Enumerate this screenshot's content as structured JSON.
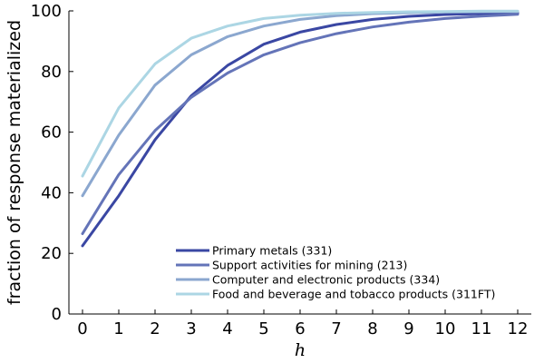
{
  "chart_data": {
    "type": "line",
    "title": "",
    "xlabel": "h",
    "ylabel": "fraction of response materialized",
    "x": [
      0,
      1,
      2,
      3,
      4,
      5,
      6,
      7,
      8,
      9,
      10,
      11,
      12
    ],
    "xlim": [
      0,
      12
    ],
    "ylim": [
      0,
      100
    ],
    "xticks": [
      "0",
      "1",
      "2",
      "3",
      "4",
      "5",
      "6",
      "7",
      "8",
      "9",
      "10",
      "11",
      "12"
    ],
    "yticks": [
      "0",
      "20",
      "40",
      "60",
      "80",
      "100"
    ],
    "grid": false,
    "legend_position": "bottom-right",
    "series": [
      {
        "name": "Primary metals (331)",
        "color": "#3a47a3",
        "values": [
          22.5,
          39,
          57.5,
          72,
          82,
          89,
          93,
          95.5,
          97.2,
          98.2,
          98.8,
          99.1,
          99.3
        ]
      },
      {
        "name": "Support activities for mining (213)",
        "color": "#6474b8",
        "values": [
          26.5,
          46,
          60.5,
          71.5,
          79.5,
          85.5,
          89.5,
          92.5,
          94.7,
          96.3,
          97.5,
          98.3,
          98.9
        ]
      },
      {
        "name": "Computer and electronic products (334)",
        "color": "#8ba7cf",
        "values": [
          39,
          59,
          75.5,
          85.5,
          91.5,
          95,
          97.2,
          98.4,
          99.1,
          99.4,
          99.6,
          99.7,
          99.8
        ]
      },
      {
        "name": "Food and beverage and tobacco products (311FT)",
        "color": "#acd6e4",
        "values": [
          45.5,
          68,
          82.5,
          91,
          95,
          97.5,
          98.6,
          99.2,
          99.5,
          99.7,
          99.8,
          99.9,
          99.9
        ]
      }
    ]
  }
}
